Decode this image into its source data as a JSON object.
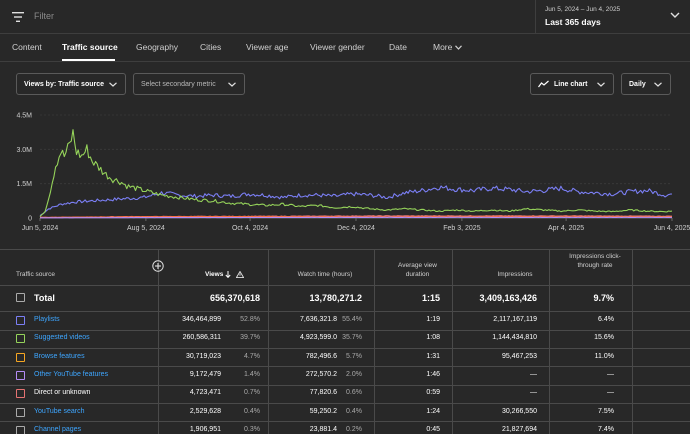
{
  "filter": {
    "placeholder": "Filter"
  },
  "date_range": {
    "range": "Jun 5, 2024 – Jun 4, 2025",
    "label": "Last 365 days"
  },
  "tabs": [
    {
      "label": "Content"
    },
    {
      "label": "Traffic source"
    },
    {
      "label": "Geography"
    },
    {
      "label": "Cities"
    },
    {
      "label": "Viewer age"
    },
    {
      "label": "Viewer gender"
    },
    {
      "label": "Date"
    },
    {
      "label": "More"
    }
  ],
  "controls": {
    "metric": "Views by: Traffic source",
    "secondary": "Select secondary metric",
    "chart_type": "Line chart",
    "interval": "Daily"
  },
  "chart_data": {
    "type": "line",
    "yticks": [
      "4.5M",
      "3.0M",
      "1.5M",
      "0"
    ],
    "ylim": [
      0,
      4500000
    ],
    "xticks": [
      "Jun 5, 2024",
      "Aug 5, 2024",
      "Oct 4, 2024",
      "Dec 4, 2024",
      "Feb 3, 2025",
      "Apr 4, 2025",
      "Jun 4, 2025"
    ],
    "x_days": [
      0,
      61,
      121,
      182,
      243,
      303,
      364
    ],
    "series": [
      {
        "color": "#7b7ff5",
        "points": [
          [
            0,
            100000
          ],
          [
            5,
            400000
          ],
          [
            12,
            600000
          ],
          [
            20,
            700000
          ],
          [
            30,
            750000
          ],
          [
            40,
            800000
          ],
          [
            50,
            850000
          ],
          [
            60,
            900000
          ],
          [
            70,
            1100000
          ],
          [
            80,
            1000000
          ],
          [
            90,
            950000
          ],
          [
            100,
            1000000
          ],
          [
            110,
            950000
          ],
          [
            120,
            1050000
          ],
          [
            130,
            1000000
          ],
          [
            140,
            900000
          ],
          [
            150,
            1000000
          ],
          [
            160,
            1000000
          ],
          [
            170,
            950000
          ],
          [
            180,
            1050000
          ],
          [
            190,
            1000000
          ],
          [
            200,
            900000
          ],
          [
            210,
            1100000
          ],
          [
            220,
            1200000
          ],
          [
            230,
            1350000
          ],
          [
            240,
            1250000
          ],
          [
            250,
            1200000
          ],
          [
            260,
            1300000
          ],
          [
            270,
            1250000
          ],
          [
            280,
            1150000
          ],
          [
            290,
            1200000
          ],
          [
            300,
            1300000
          ],
          [
            310,
            1150000
          ],
          [
            320,
            1100000
          ],
          [
            330,
            1050000
          ],
          [
            340,
            1150000
          ],
          [
            350,
            1200000
          ],
          [
            360,
            1000000
          ],
          [
            364,
            1050000
          ]
        ]
      },
      {
        "color": "#95d35a",
        "points": [
          [
            0,
            50000
          ],
          [
            3,
            300000
          ],
          [
            6,
            1200000
          ],
          [
            9,
            2300000
          ],
          [
            12,
            2900000
          ],
          [
            14,
            2700000
          ],
          [
            17,
            3200000
          ],
          [
            19,
            3700000
          ],
          [
            21,
            2900000
          ],
          [
            24,
            2700000
          ],
          [
            27,
            3000000
          ],
          [
            30,
            2500000
          ],
          [
            34,
            2200000
          ],
          [
            38,
            1900000
          ],
          [
            42,
            1700000
          ],
          [
            46,
            1600000
          ],
          [
            50,
            1400000
          ],
          [
            55,
            1300000
          ],
          [
            60,
            1200000
          ],
          [
            70,
            1000000
          ],
          [
            80,
            900000
          ],
          [
            90,
            800000
          ],
          [
            100,
            750000
          ],
          [
            110,
            650000
          ],
          [
            120,
            600000
          ],
          [
            130,
            550000
          ],
          [
            140,
            600000
          ],
          [
            150,
            500000
          ],
          [
            160,
            550000
          ],
          [
            170,
            450000
          ],
          [
            180,
            500000
          ],
          [
            190,
            400000
          ],
          [
            200,
            350000
          ],
          [
            210,
            400000
          ],
          [
            220,
            350000
          ],
          [
            230,
            300000
          ],
          [
            240,
            350000
          ],
          [
            250,
            300000
          ],
          [
            260,
            350000
          ],
          [
            270,
            300000
          ],
          [
            280,
            400000
          ],
          [
            290,
            350000
          ],
          [
            300,
            300000
          ],
          [
            310,
            350000
          ],
          [
            320,
            300000
          ],
          [
            330,
            280000
          ],
          [
            340,
            350000
          ],
          [
            350,
            300000
          ],
          [
            360,
            280000
          ],
          [
            364,
            300000
          ]
        ]
      },
      {
        "color": "#e57373",
        "points": [
          [
            0,
            20000
          ],
          [
            50,
            60000
          ],
          [
            100,
            70000
          ],
          [
            150,
            80000
          ],
          [
            200,
            90000
          ],
          [
            250,
            90000
          ],
          [
            300,
            90000
          ],
          [
            364,
            80000
          ]
        ]
      },
      {
        "color": "#ff6f3c",
        "points": [
          [
            0,
            30000
          ],
          [
            60,
            50000
          ],
          [
            120,
            60000
          ],
          [
            180,
            50000
          ],
          [
            240,
            70000
          ],
          [
            300,
            70000
          ],
          [
            364,
            60000
          ]
        ]
      },
      {
        "color": "#b48cf5",
        "points": [
          [
            0,
            10000
          ],
          [
            100,
            20000
          ],
          [
            200,
            30000
          ],
          [
            300,
            30000
          ],
          [
            364,
            30000
          ]
        ]
      }
    ]
  },
  "table": {
    "headers": {
      "source": "Traffic source",
      "views": "Views",
      "watch": "Watch time (hours)",
      "avd": "Average view duration",
      "impressions": "Impressions",
      "ctr": "Impressions click-through rate"
    },
    "total": {
      "label": "Total",
      "views": "656,370,618",
      "watch": "13,780,271.2",
      "avd": "1:15",
      "impressions": "3,409,163,426",
      "ctr": "9.7%"
    },
    "rows": [
      {
        "name": "Playlists",
        "color": "#7b7ff5",
        "link": true,
        "views": "346,464,899",
        "views_pct": "52.8%",
        "watch": "7,636,321.8",
        "watch_pct": "55.4%",
        "avd": "1:19",
        "impressions": "2,117,167,119",
        "ctr": "6.4%"
      },
      {
        "name": "Suggested videos",
        "color": "#95d35a",
        "link": true,
        "views": "260,586,311",
        "views_pct": "39.7%",
        "watch": "4,923,599.0",
        "watch_pct": "35.7%",
        "avd": "1:08",
        "impressions": "1,144,434,810",
        "ctr": "15.6%"
      },
      {
        "name": "Browse features",
        "color": "#f5a623",
        "link": true,
        "views": "30,719,023",
        "views_pct": "4.7%",
        "watch": "782,496.6",
        "watch_pct": "5.7%",
        "avd": "1:31",
        "impressions": "95,467,253",
        "ctr": "11.0%"
      },
      {
        "name": "Other YouTube features",
        "color": "#b48cf5",
        "link": true,
        "views": "9,172,479",
        "views_pct": "1.4%",
        "watch": "272,570.2",
        "watch_pct": "2.0%",
        "avd": "1:46",
        "impressions": "—",
        "ctr": "—"
      },
      {
        "name": "Direct or unknown",
        "color": "#e57373",
        "link": false,
        "views": "4,723,471",
        "views_pct": "0.7%",
        "watch": "77,820.6",
        "watch_pct": "0.6%",
        "avd": "0:59",
        "impressions": "—",
        "ctr": "—"
      },
      {
        "name": "YouTube search",
        "color": "#aaaaaa",
        "link": true,
        "views": "2,529,628",
        "views_pct": "0.4%",
        "watch": "59,250.2",
        "watch_pct": "0.4%",
        "avd": "1:24",
        "impressions": "30,266,550",
        "ctr": "7.5%"
      },
      {
        "name": "Channel pages",
        "color": "#aaaaaa",
        "link": true,
        "views": "1,906,951",
        "views_pct": "0.3%",
        "watch": "23,881.4",
        "watch_pct": "0.2%",
        "avd": "0:45",
        "impressions": "21,827,694",
        "ctr": "7.4%"
      }
    ]
  }
}
